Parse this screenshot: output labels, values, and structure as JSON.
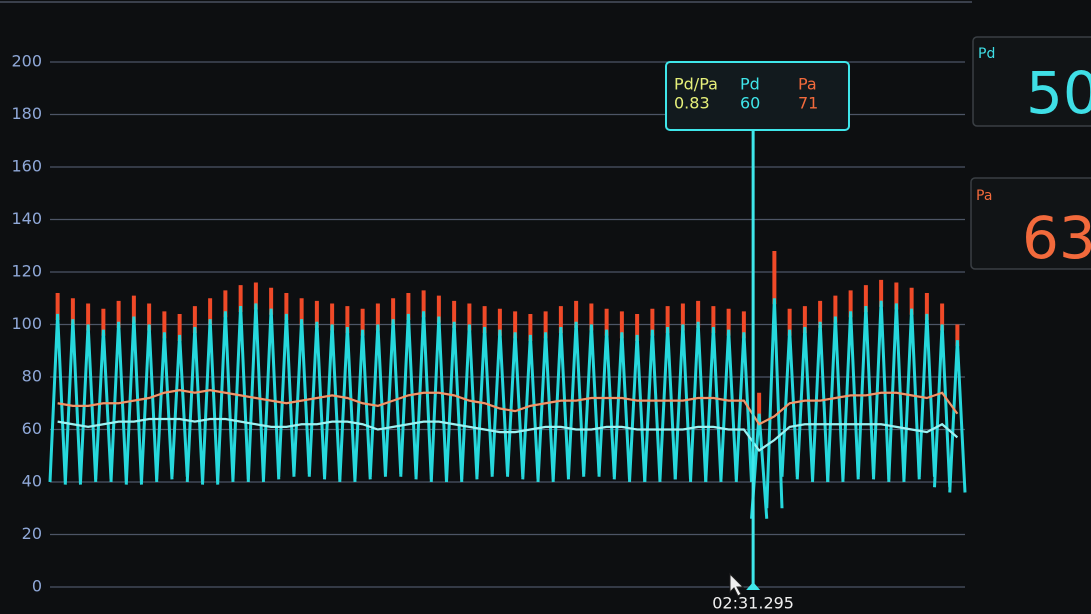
{
  "chart_data": {
    "type": "line",
    "ylim": [
      0,
      200
    ],
    "yticks": [
      0,
      20,
      40,
      60,
      80,
      100,
      120,
      140,
      160,
      180,
      200
    ],
    "grid": true,
    "pa_peak": {
      "color": "#f04a28",
      "values": [
        112,
        110,
        108,
        106,
        109,
        111,
        108,
        105,
        104,
        107,
        110,
        113,
        115,
        116,
        114,
        112,
        110,
        109,
        108,
        107,
        106,
        108,
        110,
        112,
        113,
        111,
        109,
        108,
        107,
        106,
        105,
        104,
        105,
        107,
        109,
        108,
        106,
        105,
        104,
        106,
        107,
        108,
        109,
        107,
        106,
        105,
        74,
        128,
        106,
        107,
        109,
        111,
        113,
        115,
        117,
        116,
        114,
        112,
        108,
        100
      ]
    },
    "pd_peak": {
      "color": "#26d8dc",
      "values": [
        104,
        102,
        100,
        98,
        101,
        103,
        100,
        97,
        96,
        99,
        102,
        105,
        107,
        108,
        106,
        104,
        102,
        101,
        100,
        99,
        98,
        100,
        102,
        104,
        105,
        103,
        101,
        100,
        99,
        98,
        97,
        96,
        97,
        99,
        101,
        100,
        98,
        97,
        96,
        98,
        99,
        100,
        101,
        99,
        98,
        97,
        66,
        110,
        98,
        99,
        101,
        103,
        105,
        107,
        109,
        108,
        106,
        104,
        100,
        94
      ]
    },
    "pd_trough": {
      "color": "#26d8dc",
      "values": [
        40,
        39,
        40,
        41,
        40,
        39,
        40,
        41,
        42,
        40,
        39,
        40,
        41,
        40,
        41,
        42,
        43,
        42,
        41,
        40,
        41,
        42,
        43,
        42,
        41,
        40,
        40,
        41,
        42,
        43,
        42,
        41,
        40,
        41,
        42,
        43,
        42,
        41,
        40,
        40,
        41,
        41,
        40,
        40,
        41,
        40,
        26,
        30,
        42,
        41,
        40,
        40,
        41,
        42,
        41,
        40,
        41,
        42,
        38,
        36
      ]
    },
    "pa_mean": {
      "color": "#f29468",
      "values": [
        70,
        69,
        69,
        70,
        70,
        71,
        72,
        74,
        75,
        74,
        75,
        74,
        73,
        72,
        71,
        70,
        71,
        72,
        73,
        72,
        70,
        69,
        71,
        73,
        74,
        74,
        73,
        71,
        70,
        68,
        67,
        69,
        70,
        71,
        71,
        72,
        72,
        72,
        71,
        71,
        71,
        71,
        72,
        72,
        71,
        71,
        62,
        65,
        70,
        71,
        71,
        72,
        73,
        73,
        74,
        74,
        73,
        72,
        74,
        66
      ]
    },
    "pd_mean": {
      "color": "#9af2f2",
      "values": [
        63,
        62,
        61,
        62,
        63,
        63,
        64,
        64,
        64,
        63,
        64,
        64,
        63,
        62,
        61,
        61,
        62,
        62,
        63,
        63,
        62,
        60,
        61,
        62,
        63,
        63,
        62,
        61,
        60,
        59,
        59,
        60,
        61,
        61,
        60,
        60,
        61,
        61,
        60,
        60,
        60,
        60,
        61,
        61,
        60,
        60,
        52,
        56,
        61,
        62,
        62,
        62,
        62,
        62,
        62,
        61,
        60,
        59,
        62,
        57
      ]
    },
    "cursor": {
      "time": "02:31.295",
      "ratio_label": "Pd/Pa",
      "ratio": 0.83,
      "pd_label": "Pd",
      "pd": 60,
      "pa_label": "Pa",
      "pa": 71
    }
  },
  "panels": [
    {
      "label": "Pd",
      "value": 50,
      "color": "#3fdfe6"
    },
    {
      "label": "Pa",
      "value": 63,
      "color": "#f26a3c"
    }
  ]
}
